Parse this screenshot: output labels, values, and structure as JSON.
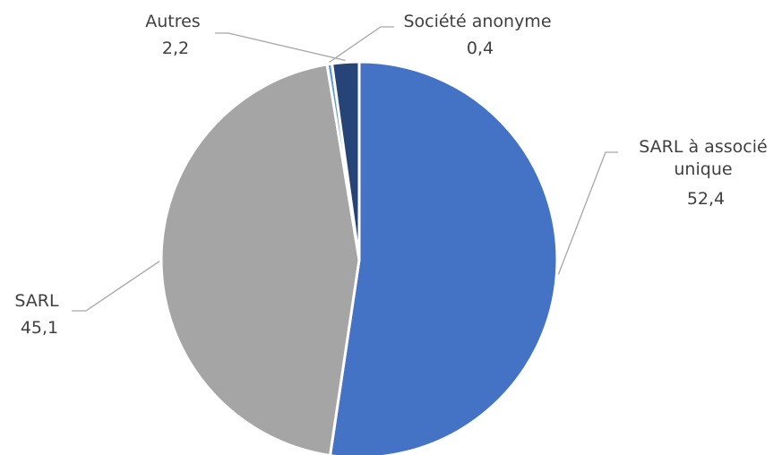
{
  "chart_data": {
    "type": "pie",
    "title": "",
    "slices": [
      {
        "label": "SARL à associé unique",
        "label_lines": [
          "SARL à associé",
          "unique"
        ],
        "value": 52.4,
        "value_text": "52,4",
        "color": "#4472c4"
      },
      {
        "label": "SARL",
        "label_lines": [
          "SARL"
        ],
        "value": 45.1,
        "value_text": "45,1",
        "color": "#a5a5a5"
      },
      {
        "label": "Société anonyme",
        "label_lines": [
          "Société anonyme"
        ],
        "value": 0.4,
        "value_text": "0,4",
        "color": "#5b9bd5"
      },
      {
        "label": "Autres",
        "label_lines": [
          "Autres"
        ],
        "value": 2.2,
        "value_text": "2,2",
        "color": "#264478"
      }
    ],
    "start_angle_deg": 0,
    "direction": "clockwise",
    "legend": "none",
    "data_labels": "outside-with-leader-lines"
  }
}
